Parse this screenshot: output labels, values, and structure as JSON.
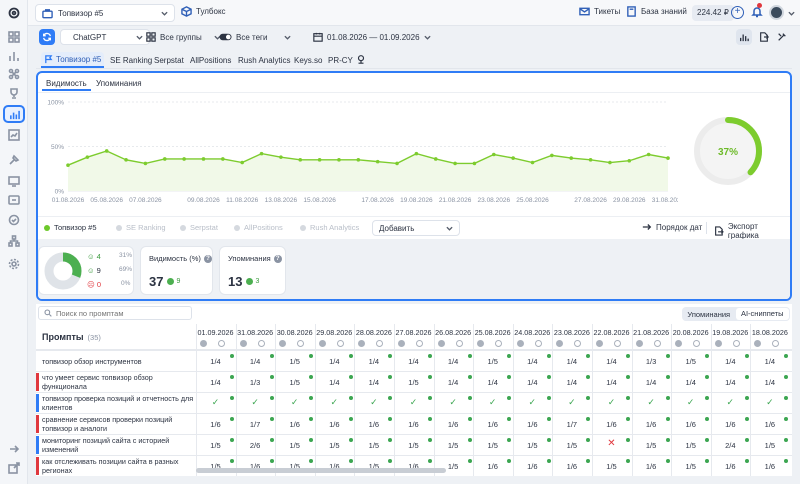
{
  "topbar": {
    "project": "Топвизор #5",
    "folder": "Тулбокс",
    "tickets": "Тикеты",
    "knowledge": "База знаний",
    "balance": "224.42 ₽"
  },
  "filters": {
    "engine": "ChatGPT",
    "groups": "Все группы",
    "tags": "Все теги",
    "dates": "01.08.2026 — 01.09.2026"
  },
  "tools": [
    "Топвизор #5",
    "SE Ranking",
    "Serpstat",
    "AllPositions",
    "Rush Analytics",
    "Keys.so",
    "PR-CY"
  ],
  "panel": {
    "tab_visibility": "Видимость",
    "tab_mentions": "Упоминания",
    "donut_label": "37%",
    "donut_value": 37
  },
  "chart_data": {
    "type": "line",
    "title": "",
    "xlabel": "",
    "ylabel": "",
    "ylim": [
      0,
      100
    ],
    "yticks": [
      "0%",
      "50%",
      "100%"
    ],
    "x_tick_labels": [
      "01.08.2026",
      "05.08.2026",
      "07.08.2026",
      "09.08.2026",
      "11.08.2026",
      "13.08.2026",
      "15.08.2026",
      "17.08.2026",
      "19.08.2026",
      "21.08.2026",
      "23.08.2026",
      "25.08.2026",
      "27.08.2026",
      "29.08.2026",
      "31.08.2026"
    ],
    "series": [
      {
        "name": "Топвизор #5",
        "color": "#7dcc2e",
        "values": [
          29,
          38,
          45,
          35,
          31,
          36,
          36,
          36,
          36,
          32,
          42,
          38,
          35,
          35,
          35,
          35,
          33,
          31,
          42,
          36,
          31,
          31,
          41,
          37,
          32,
          40,
          37,
          35,
          32,
          34,
          41,
          37
        ]
      }
    ]
  },
  "legend": {
    "items": [
      "Топвизор #5",
      "SE Ranking",
      "Serpstat",
      "AllPositions",
      "Rush Analytics"
    ],
    "add_label": "Добавить",
    "date_order": "Порядок дат",
    "export": "Экспорт графика"
  },
  "summary": {
    "positive_count": "4",
    "positive_pct": "31%",
    "neutral_count": "9",
    "neutral_pct": "69%",
    "negative_count": "0",
    "negative_pct": "0%",
    "visibility_title": "Видимость (%)",
    "visibility_value": "37",
    "visibility_delta": "9",
    "mentions_title": "Упоминания",
    "mentions_value": "13",
    "mentions_delta": "3"
  },
  "table": {
    "search_placeholder": "Поиск по промптам",
    "toggle_mentions": "Упоминания",
    "toggle_ai": "AI-сниппеты",
    "prompts_title": "Промпты",
    "prompts_count": "(35)",
    "dates": [
      "01.09.2026",
      "31.08.2026",
      "30.08.2026",
      "29.08.2026",
      "28.08.2026",
      "27.08.2026",
      "26.08.2026",
      "25.08.2026",
      "24.08.2026",
      "23.08.2026",
      "22.08.2026",
      "21.08.2026",
      "20.08.2026",
      "19.08.2026",
      "18.08.2026"
    ],
    "rows": [
      {
        "label": "топвизор обзор инструментов",
        "bar": "",
        "cells": [
          "1/4",
          "1/4",
          "1/5",
          "1/4",
          "1/4",
          "1/4",
          "1/4",
          "1/5",
          "1/4",
          "1/4",
          "1/4",
          "1/3",
          "1/5",
          "1/4",
          "1/4"
        ]
      },
      {
        "label": "что умеет сервис топвизор обзор функционала",
        "bar": "#e0383e",
        "cells": [
          "1/4",
          "1/3",
          "1/5",
          "1/4",
          "1/4",
          "1/5",
          "1/4",
          "1/4",
          "1/4",
          "1/4",
          "1/4",
          "1/4",
          "1/4",
          "1/4",
          "1/4"
        ]
      },
      {
        "label": "топвизор проверка позиций и отчетность для клиентов",
        "bar": "#2f7cf6",
        "cells": [
          "✓",
          "✓",
          "✓",
          "✓",
          "✓",
          "✓",
          "✓",
          "✓",
          "✓",
          "✓",
          "✓",
          "✓",
          "✓",
          "✓",
          "✓"
        ]
      },
      {
        "label": "сравнение сервисов проверки позиций топвизор и аналоги",
        "bar": "#e0383e",
        "cells": [
          "1/6",
          "1/7",
          "1/6",
          "1/6",
          "1/6",
          "1/6",
          "1/6",
          "1/6",
          "1/6",
          "1/7",
          "1/6",
          "1/6",
          "1/6",
          "1/6",
          "1/6"
        ]
      },
      {
        "label": "мониторинг позиций сайта с историей изменений",
        "bar": "#2f7cf6",
        "cells": [
          "1/5",
          "2/6",
          "1/5",
          "1/5",
          "1/5",
          "1/5",
          "1/5",
          "1/5",
          "1/5",
          "1/5",
          "✕",
          "1/5",
          "1/5",
          "2/4",
          "1/5"
        ]
      },
      {
        "label": "как отслеживать позиции сайта в разных регионах",
        "bar": "#e0383e",
        "cells": [
          "1/5",
          "1/6",
          "1/5",
          "1/6",
          "1/5",
          "1/6",
          "1/5",
          "1/6",
          "1/6",
          "1/6",
          "1/5",
          "1/6",
          "1/5",
          "1/6",
          "1/6"
        ]
      }
    ]
  }
}
